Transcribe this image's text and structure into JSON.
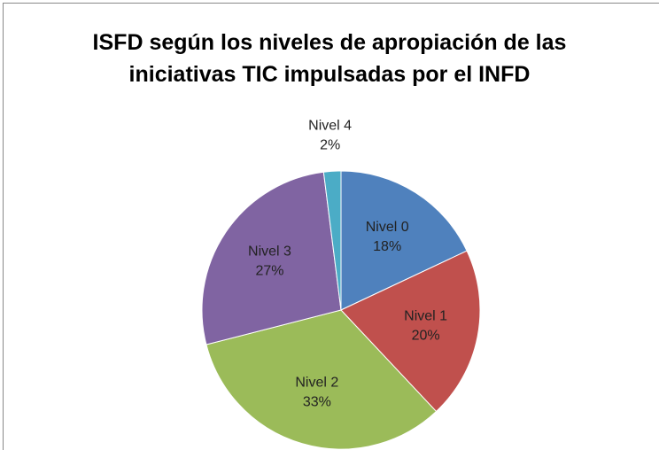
{
  "chart_data": {
    "type": "pie",
    "title": "ISFD según los niveles de apropiación de las iniciativas TIC impulsadas por el INFD",
    "categories": [
      "Nivel 0",
      "Nivel 1",
      "Nivel 2",
      "Nivel 3",
      "Nivel 4"
    ],
    "values": [
      18,
      20,
      33,
      27,
      2
    ],
    "value_labels": [
      "18%",
      "20%",
      "33%",
      "27%",
      "2%"
    ],
    "colors": [
      "#4f81bd",
      "#c0504d",
      "#9bbb59",
      "#8064a2",
      "#4bacc6"
    ]
  }
}
